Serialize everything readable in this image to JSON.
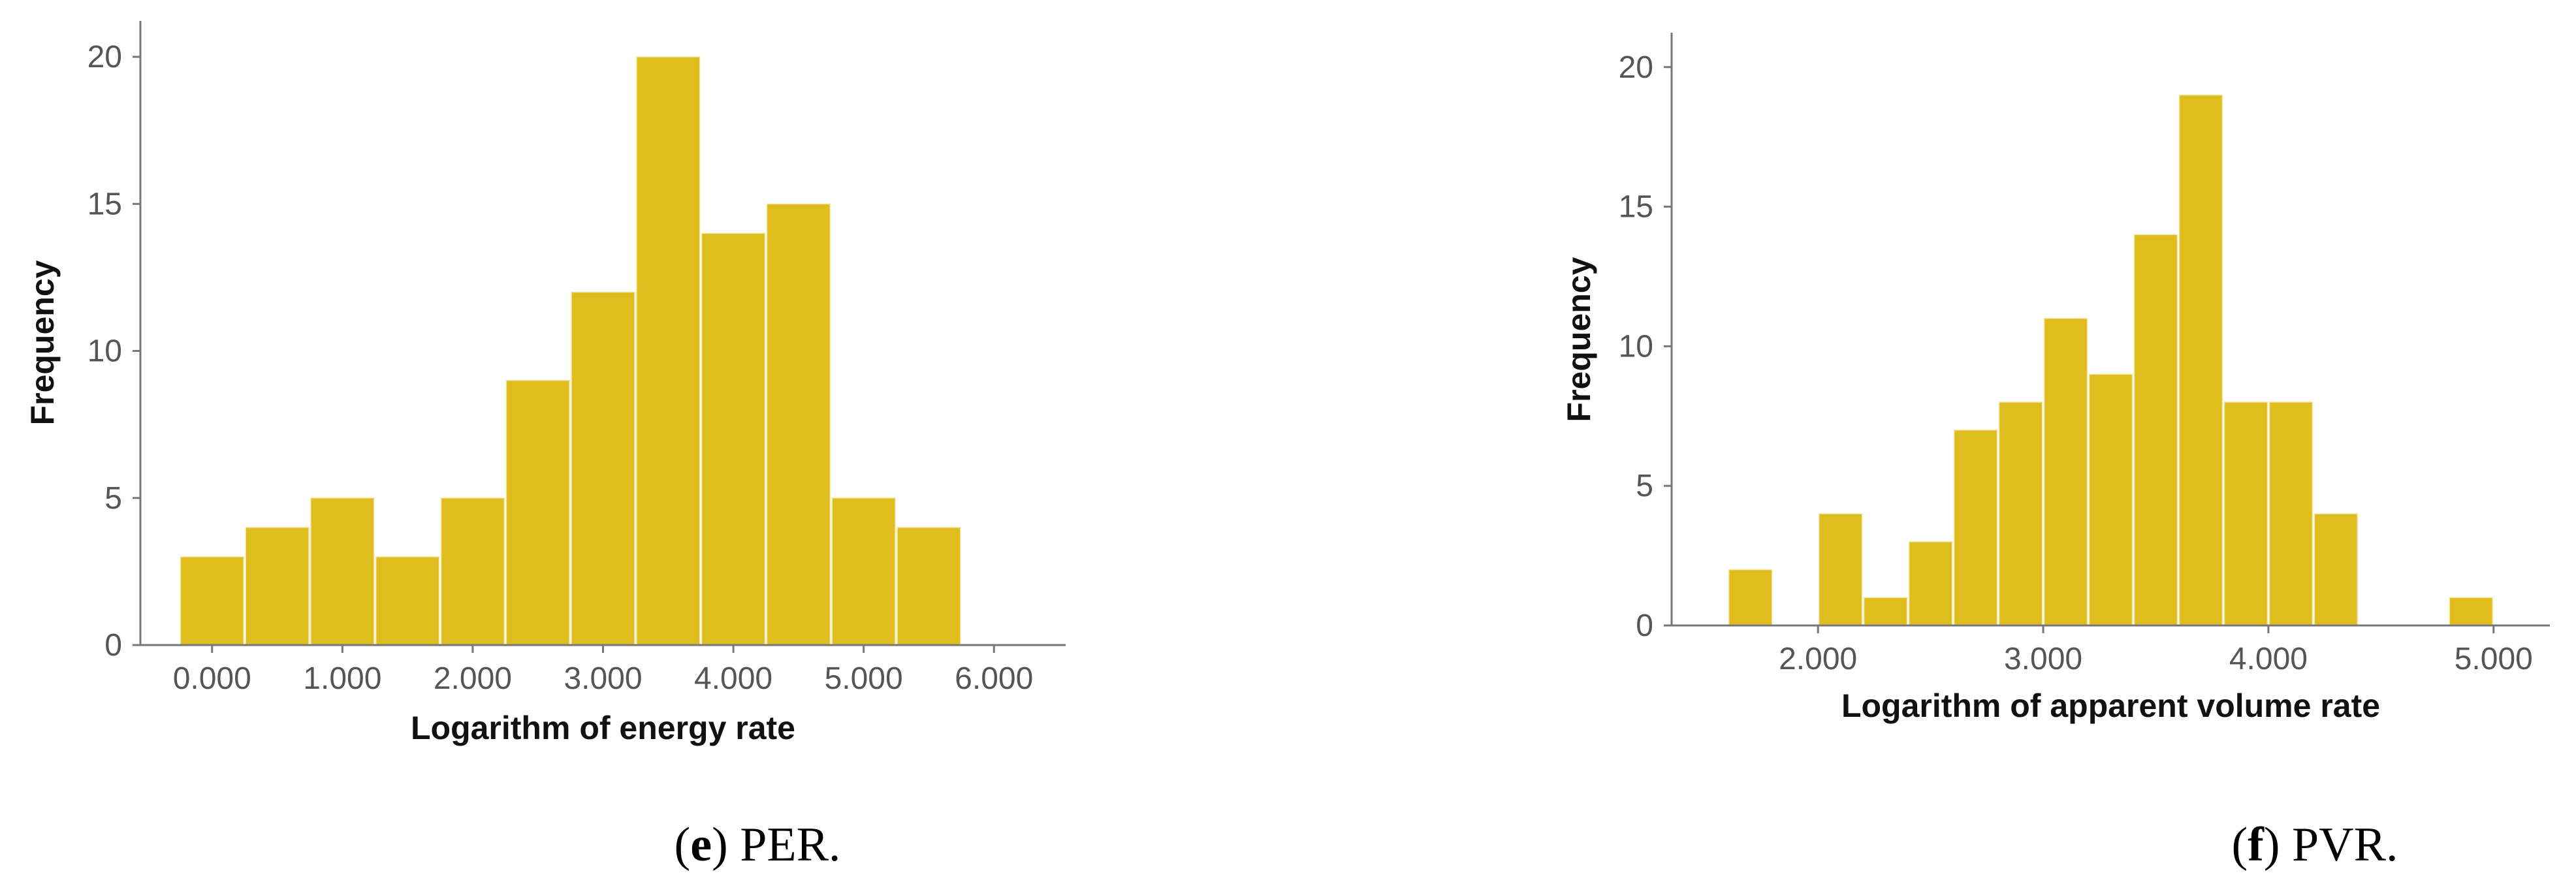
{
  "chart_data": [
    {
      "type": "bar",
      "subtype": "histogram",
      "caption_letter": "e",
      "caption_text": " PER.",
      "xlabel": "Logarithm of energy rate",
      "ylabel": "Frequency",
      "xlim": [
        -0.55,
        6.55
      ],
      "ylim": [
        0,
        21
      ],
      "xticks": [
        0,
        1,
        2,
        3,
        4,
        5,
        6
      ],
      "xtick_labels": [
        "0.000",
        "1.000",
        "2.000",
        "3.000",
        "4.000",
        "5.000",
        "6.000"
      ],
      "yticks": [
        0,
        5,
        10,
        15,
        20
      ],
      "ytick_labels": [
        "0",
        "5",
        "10",
        "15",
        "20"
      ],
      "bin_width": 0.5,
      "bins": [
        {
          "start": -0.25,
          "value": 3
        },
        {
          "start": 0.25,
          "value": 4
        },
        {
          "start": 0.75,
          "value": 5
        },
        {
          "start": 1.25,
          "value": 3
        },
        {
          "start": 1.75,
          "value": 5
        },
        {
          "start": 2.25,
          "value": 9
        },
        {
          "start": 2.75,
          "value": 12
        },
        {
          "start": 3.25,
          "value": 20
        },
        {
          "start": 3.75,
          "value": 14
        },
        {
          "start": 4.25,
          "value": 15
        },
        {
          "start": 4.75,
          "value": 5
        },
        {
          "start": 5.25,
          "value": 4
        }
      ],
      "grid": false,
      "bar_color": "#e0bd1f"
    },
    {
      "type": "bar",
      "subtype": "histogram",
      "caption_letter": "f",
      "caption_text": " PVR.",
      "xlabel": "Logarithm of apparent volume rate",
      "ylabel": "Frequency",
      "xlim": [
        1.35,
        5.25
      ],
      "ylim": [
        0,
        21
      ],
      "xticks": [
        2,
        3,
        4,
        5
      ],
      "xtick_labels": [
        "2.000",
        "3.000",
        "4.000",
        "5.000"
      ],
      "yticks": [
        0,
        5,
        10,
        15,
        20
      ],
      "ytick_labels": [
        "0",
        "5",
        "10",
        "15",
        "20"
      ],
      "bin_width": 0.2,
      "bins": [
        {
          "start": 1.6,
          "value": 2
        },
        {
          "start": 1.8,
          "value": 0
        },
        {
          "start": 2.0,
          "value": 4
        },
        {
          "start": 2.2,
          "value": 1
        },
        {
          "start": 2.4,
          "value": 3
        },
        {
          "start": 2.6,
          "value": 7
        },
        {
          "start": 2.8,
          "value": 8
        },
        {
          "start": 3.0,
          "value": 11
        },
        {
          "start": 3.2,
          "value": 9
        },
        {
          "start": 3.4,
          "value": 14
        },
        {
          "start": 3.6,
          "value": 19
        },
        {
          "start": 3.8,
          "value": 8
        },
        {
          "start": 4.0,
          "value": 8
        },
        {
          "start": 4.2,
          "value": 4
        },
        {
          "start": 4.4,
          "value": 0
        },
        {
          "start": 4.6,
          "value": 0
        },
        {
          "start": 4.8,
          "value": 1
        }
      ],
      "grid": false,
      "bar_color": "#e0bd1f"
    }
  ]
}
